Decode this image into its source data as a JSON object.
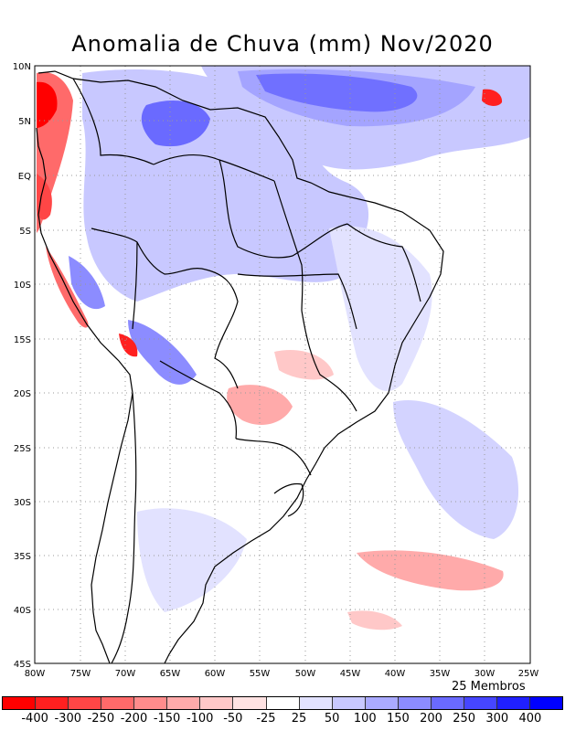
{
  "title": "Anomalia de Chuva (mm) Nov/2020",
  "members_label": "25 Membros",
  "lat_labels": [
    "10N",
    "5N",
    "EQ",
    "5S",
    "10S",
    "15S",
    "20S",
    "25S",
    "30S",
    "35S",
    "40S",
    "45S"
  ],
  "lon_labels": [
    "80W",
    "75W",
    "70W",
    "65W",
    "60W",
    "55W",
    "50W",
    "45W",
    "40W",
    "35W",
    "30W",
    "25W"
  ],
  "legend": {
    "labels": [
      "-400",
      "-300",
      "-250",
      "-200",
      "-150",
      "-100",
      "-50",
      "-25",
      "25",
      "50",
      "100",
      "150",
      "200",
      "250",
      "300",
      "400"
    ],
    "colors": [
      "#ff0000",
      "#ff2020",
      "#ff4646",
      "#ff6a6a",
      "#ff8c8c",
      "#ffaaaa",
      "#ffc8c8",
      "#ffe2e2",
      "#ffffff",
      "#e2e2ff",
      "#c8c8ff",
      "#aaaaff",
      "#8c8cff",
      "#6a6aff",
      "#4646ff",
      "#2020ff",
      "#0000ff"
    ]
  },
  "colors": {
    "positive_strong": "#0000ff",
    "negative_strong": "#ff0000",
    "neutral": "#ffffff"
  }
}
